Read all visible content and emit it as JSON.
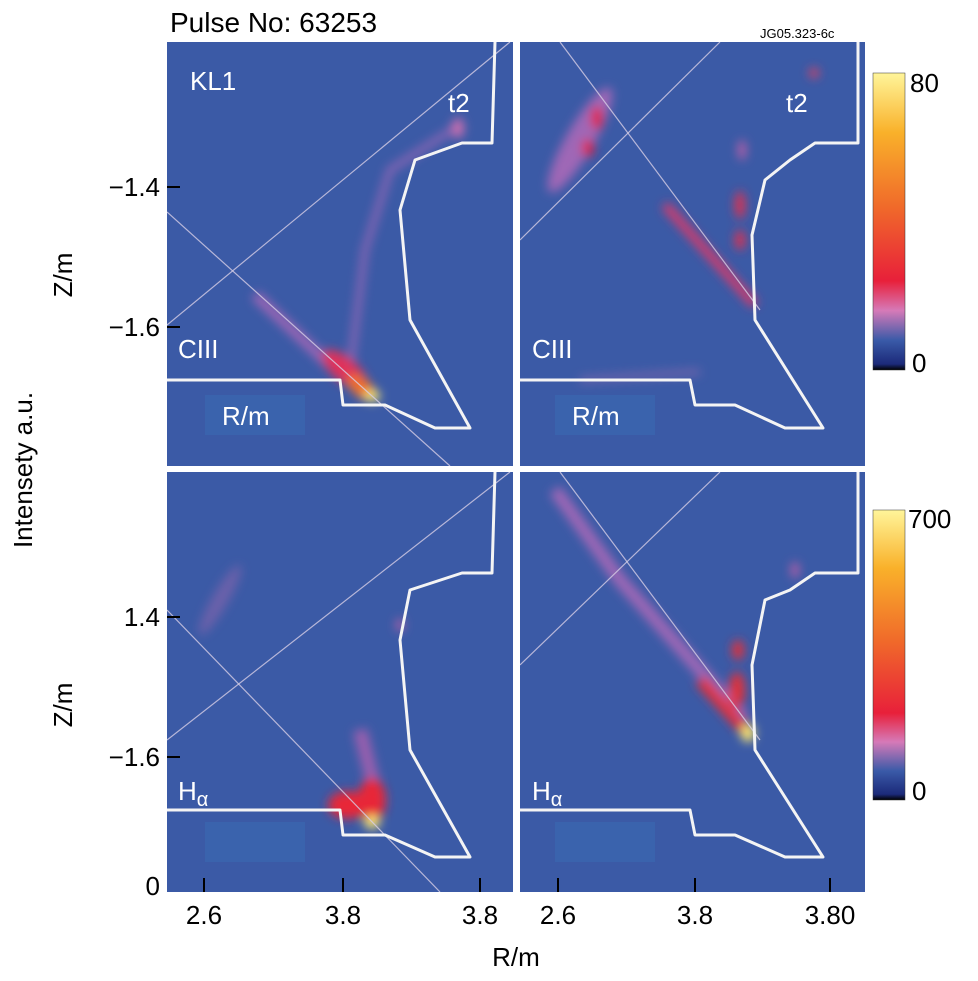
{
  "header": {
    "title": "Pulse No: 63253",
    "code": "JG05.323-6c"
  },
  "panels": [
    {
      "label": "KL1",
      "time": "t2",
      "line": "CIII",
      "axis_note": "R/m"
    },
    {
      "time": "t2",
      "line": "CIII",
      "axis_note": "R/m"
    },
    {
      "line": {
        "base": "H",
        "sub": "α"
      }
    },
    {
      "line": {
        "base": "H",
        "sub": "α"
      }
    }
  ],
  "y_axis": {
    "label": "Intensety a.u.",
    "rows": [
      {
        "label": "Z/m",
        "ticks": [
          "−1.4",
          "−1.6"
        ]
      },
      {
        "label": "Z/m",
        "ticks": [
          "1.4",
          "−1.6",
          "0"
        ]
      }
    ]
  },
  "x_axis": {
    "label": "R/m",
    "ticks": [
      "2.6",
      "3.8",
      "3.8",
      "2.6",
      "3.8",
      "3.80"
    ]
  },
  "colorbars": [
    {
      "max": "80",
      "min": "0"
    },
    {
      "max": "700",
      "min": "0"
    }
  ]
}
